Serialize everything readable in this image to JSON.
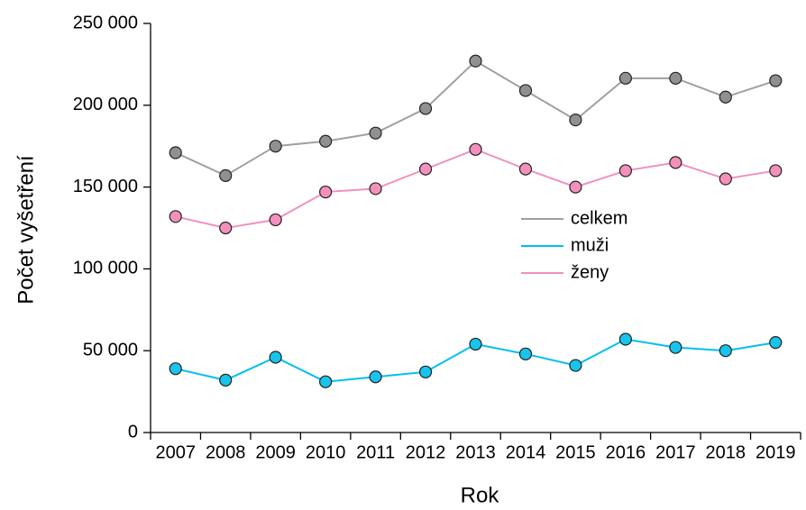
{
  "chart_data": {
    "type": "line",
    "x_label": "Rok",
    "y_label": "Počet vyšetření",
    "categories": [
      "2007",
      "2008",
      "2009",
      "2010",
      "2011",
      "2012",
      "2013",
      "2014",
      "2015",
      "2016",
      "2017",
      "2018",
      "2019"
    ],
    "series": [
      {
        "name": "celkem",
        "color": "#a0a0a0",
        "marker_color": "#909090",
        "values": [
          171000,
          157000,
          175000,
          178000,
          183000,
          198000,
          227000,
          209000,
          191000,
          216500,
          216500,
          205000,
          215000
        ]
      },
      {
        "name": "muži",
        "color": "#00c0f0",
        "marker_color": "#18c4ec",
        "values": [
          39000,
          32000,
          46000,
          31000,
          34000,
          37000,
          54000,
          48000,
          41000,
          57000,
          52000,
          50000,
          55000
        ]
      },
      {
        "name": "ženy",
        "color": "#f090c0",
        "marker_color": "#f490bc",
        "values": [
          132000,
          125000,
          130000,
          147000,
          149000,
          161000,
          173000,
          161000,
          150000,
          160000,
          165000,
          155000,
          160000
        ]
      }
    ],
    "ylim": [
      0,
      250000
    ],
    "yticks": [
      0,
      {
        "value": 50000,
        "label": "50 000"
      },
      {
        "value": 100000,
        "label": "100 000"
      },
      {
        "value": 150000,
        "label": "150 000"
      },
      {
        "value": 200000,
        "label": "200 000"
      },
      {
        "value": 250000,
        "label": "250 000"
      }
    ],
    "legend": "right"
  }
}
